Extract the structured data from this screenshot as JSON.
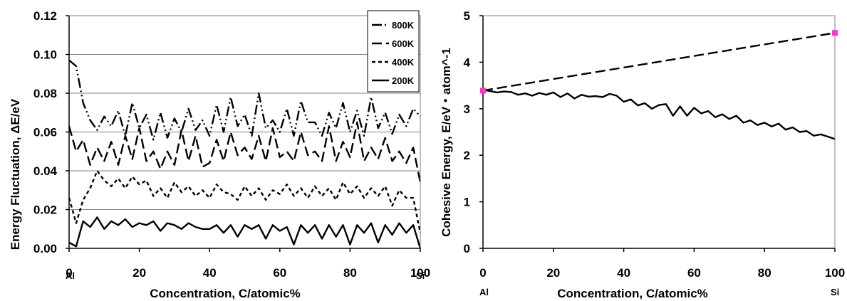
{
  "chart_data": [
    {
      "type": "line",
      "xlabel": "Concentration, C/atomic%",
      "ylabel": "Energy Fluctuation, ΔE/eV",
      "xlim": [
        0,
        100
      ],
      "ylim": [
        0,
        0.12
      ],
      "xticks": [
        "0",
        "20",
        "40",
        "60",
        "80",
        "100"
      ],
      "yticks": [
        "0.00",
        "0.02",
        "0.04",
        "0.06",
        "0.08",
        "0.10",
        "0.12"
      ],
      "x_end_labels": [
        "Al",
        "Si"
      ],
      "legend": {
        "placement": "top-right",
        "entries": [
          "800K",
          "600K",
          "400K",
          "200K"
        ]
      },
      "series": [
        {
          "name": "800K",
          "dash": "long-dash-dot-dot",
          "x": [
            0,
            2,
            4,
            6,
            8,
            10,
            12,
            14,
            16,
            18,
            20,
            22,
            24,
            26,
            28,
            30,
            32,
            34,
            36,
            38,
            40,
            42,
            44,
            46,
            48,
            50,
            52,
            54,
            56,
            58,
            60,
            62,
            64,
            66,
            68,
            70,
            72,
            74,
            76,
            78,
            80,
            82,
            84,
            86,
            88,
            90,
            92,
            94,
            96,
            98,
            100
          ],
          "y": [
            0.097,
            0.094,
            0.075,
            0.066,
            0.061,
            0.068,
            0.063,
            0.071,
            0.058,
            0.075,
            0.062,
            0.069,
            0.056,
            0.07,
            0.057,
            0.067,
            0.06,
            0.072,
            0.061,
            0.066,
            0.058,
            0.074,
            0.06,
            0.078,
            0.063,
            0.069,
            0.058,
            0.08,
            0.062,
            0.066,
            0.06,
            0.072,
            0.058,
            0.076,
            0.065,
            0.065,
            0.058,
            0.07,
            0.062,
            0.075,
            0.06,
            0.071,
            0.058,
            0.078,
            0.062,
            0.07,
            0.059,
            0.069,
            0.063,
            0.072,
            0.068
          ]
        },
        {
          "name": "600K",
          "dash": "long-dash",
          "x": [
            0,
            2,
            4,
            6,
            8,
            10,
            12,
            14,
            16,
            18,
            20,
            22,
            24,
            26,
            28,
            30,
            32,
            34,
            36,
            38,
            40,
            42,
            44,
            46,
            48,
            50,
            52,
            54,
            56,
            58,
            60,
            62,
            64,
            66,
            68,
            70,
            72,
            74,
            76,
            78,
            80,
            82,
            84,
            86,
            88,
            90,
            92,
            94,
            96,
            98,
            100
          ],
          "y": [
            0.063,
            0.05,
            0.056,
            0.043,
            0.052,
            0.045,
            0.055,
            0.043,
            0.058,
            0.046,
            0.062,
            0.045,
            0.05,
            0.041,
            0.05,
            0.043,
            0.061,
            0.045,
            0.058,
            0.042,
            0.044,
            0.056,
            0.045,
            0.06,
            0.048,
            0.052,
            0.046,
            0.058,
            0.045,
            0.062,
            0.047,
            0.05,
            0.045,
            0.06,
            0.048,
            0.05,
            0.045,
            0.063,
            0.045,
            0.055,
            0.047,
            0.065,
            0.045,
            0.052,
            0.046,
            0.057,
            0.045,
            0.05,
            0.044,
            0.052,
            0.034
          ]
        },
        {
          "name": "400K",
          "dash": "short-dash",
          "x": [
            0,
            2,
            4,
            6,
            8,
            10,
            12,
            14,
            16,
            18,
            20,
            22,
            24,
            26,
            28,
            30,
            32,
            34,
            36,
            38,
            40,
            42,
            44,
            46,
            48,
            50,
            52,
            54,
            56,
            58,
            60,
            62,
            64,
            66,
            68,
            70,
            72,
            74,
            76,
            78,
            80,
            82,
            84,
            86,
            88,
            90,
            92,
            94,
            96,
            98,
            100
          ],
          "y": [
            0.026,
            0.013,
            0.025,
            0.031,
            0.04,
            0.035,
            0.032,
            0.036,
            0.031,
            0.037,
            0.033,
            0.035,
            0.027,
            0.031,
            0.026,
            0.034,
            0.029,
            0.032,
            0.027,
            0.03,
            0.026,
            0.033,
            0.029,
            0.028,
            0.025,
            0.032,
            0.027,
            0.031,
            0.025,
            0.03,
            0.028,
            0.033,
            0.027,
            0.031,
            0.026,
            0.032,
            0.027,
            0.031,
            0.025,
            0.034,
            0.028,
            0.032,
            0.026,
            0.031,
            0.027,
            0.032,
            0.022,
            0.03,
            0.026,
            0.026,
            0.008
          ]
        },
        {
          "name": "200K",
          "dash": "solid",
          "x": [
            0,
            2,
            4,
            6,
            8,
            10,
            12,
            14,
            16,
            18,
            20,
            22,
            24,
            26,
            28,
            30,
            32,
            34,
            36,
            38,
            40,
            42,
            44,
            46,
            48,
            50,
            52,
            54,
            56,
            58,
            60,
            62,
            64,
            66,
            68,
            70,
            72,
            74,
            76,
            78,
            80,
            82,
            84,
            86,
            88,
            90,
            92,
            94,
            96,
            98,
            100
          ],
          "y": [
            0.003,
            0.001,
            0.014,
            0.011,
            0.016,
            0.01,
            0.014,
            0.012,
            0.015,
            0.011,
            0.013,
            0.012,
            0.014,
            0.009,
            0.013,
            0.012,
            0.01,
            0.013,
            0.011,
            0.01,
            0.01,
            0.012,
            0.008,
            0.012,
            0.006,
            0.012,
            0.01,
            0.012,
            0.005,
            0.012,
            0.009,
            0.011,
            0.002,
            0.012,
            0.008,
            0.012,
            0.005,
            0.012,
            0.006,
            0.012,
            0.002,
            0.012,
            0.008,
            0.013,
            0.003,
            0.012,
            0.007,
            0.013,
            0.008,
            0.012,
            0.0
          ]
        }
      ]
    },
    {
      "type": "line",
      "xlabel": "Concentration, C/atomic%",
      "ylabel": "Cohesive Energy, E/eV・atom^-1",
      "xlim": [
        0,
        100
      ],
      "ylim": [
        0,
        5
      ],
      "xticks": [
        "0",
        "20",
        "40",
        "60",
        "80",
        "100"
      ],
      "yticks": [
        "0",
        "1",
        "2",
        "3",
        "4",
        "5"
      ],
      "x_end_labels": [
        "Al",
        "Si"
      ],
      "colors": {
        "endpoint_marker": "#ff33cc"
      },
      "series": [
        {
          "dash": "solid",
          "x": [
            0,
            2,
            4,
            6,
            8,
            10,
            12,
            14,
            16,
            18,
            20,
            22,
            24,
            26,
            28,
            30,
            32,
            34,
            36,
            38,
            40,
            42,
            44,
            46,
            48,
            50,
            52,
            54,
            56,
            58,
            60,
            62,
            64,
            66,
            68,
            70,
            72,
            74,
            76,
            78,
            80,
            82,
            84,
            86,
            88,
            90,
            92,
            94,
            96,
            98,
            100
          ],
          "y": [
            3.4,
            3.38,
            3.35,
            3.37,
            3.36,
            3.3,
            3.33,
            3.28,
            3.34,
            3.3,
            3.35,
            3.25,
            3.33,
            3.22,
            3.3,
            3.26,
            3.27,
            3.25,
            3.32,
            3.28,
            3.15,
            3.2,
            3.07,
            3.12,
            3.0,
            3.08,
            3.1,
            2.85,
            3.05,
            2.85,
            3.02,
            2.9,
            2.95,
            2.82,
            2.88,
            2.78,
            2.85,
            2.7,
            2.75,
            2.65,
            2.7,
            2.62,
            2.68,
            2.55,
            2.6,
            2.5,
            2.52,
            2.42,
            2.45,
            2.4,
            2.35
          ]
        },
        {
          "dash": "long-dash",
          "x": [
            0,
            100
          ],
          "y": [
            3.39,
            4.63
          ]
        }
      ]
    }
  ]
}
